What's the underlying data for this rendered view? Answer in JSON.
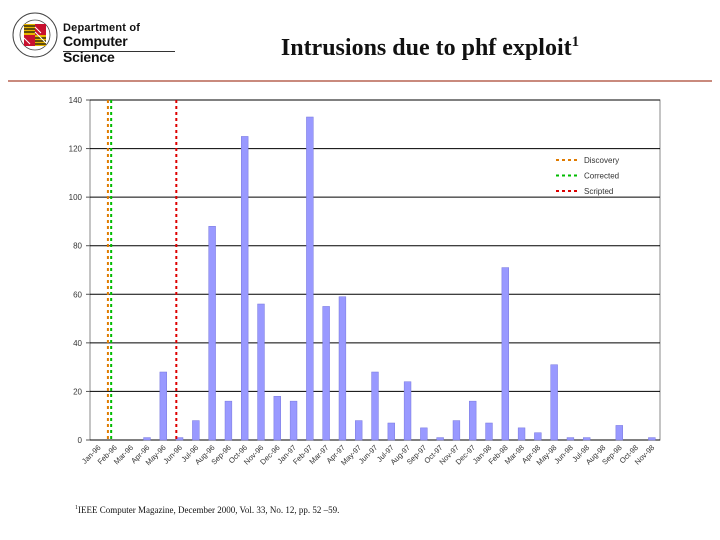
{
  "logo": {
    "line1": "Department of",
    "line2": "Computer Science",
    "seal_text": "MARYLAND"
  },
  "title": {
    "text": "Intrusions due to phf exploit",
    "footnote_marker": "1"
  },
  "footnote": {
    "marker": "1",
    "text": "IEEE Computer Magazine, December 2000, Vol. 33, No. 12, pp. 52 –59."
  },
  "chart_data": {
    "type": "bar",
    "categories": [
      "Jan-96",
      "Feb-96",
      "Mar-96",
      "Apr-96",
      "May-96",
      "Jun-96",
      "Jul-96",
      "Aug-96",
      "Sep-96",
      "Oct-96",
      "Nov-96",
      "Dec-96",
      "Jan-97",
      "Feb-97",
      "Mar-97",
      "Apr-97",
      "May-97",
      "Jun-97",
      "Jul-97",
      "Aug-97",
      "Sep-97",
      "Oct-97",
      "Nov-97",
      "Dec-97",
      "Jan-98",
      "Feb-98",
      "Mar-98",
      "Apr-98",
      "May-98",
      "Jun-98",
      "Jul-98",
      "Aug-98",
      "Sep-98",
      "Oct-98",
      "Nov-98"
    ],
    "values": [
      0,
      0,
      0,
      1,
      28,
      1,
      8,
      88,
      16,
      125,
      56,
      18,
      16,
      133,
      55,
      59,
      8,
      28,
      7,
      24,
      5,
      1,
      8,
      16,
      7,
      71,
      5,
      3,
      31,
      1,
      1,
      0,
      6,
      0,
      1
    ],
    "ylim": [
      0,
      140
    ],
    "yticks": [
      0,
      20,
      40,
      60,
      80,
      100,
      120,
      140
    ],
    "grid": true,
    "bar_color": "#9999ff",
    "legend_position": "top-right",
    "markers": [
      {
        "name": "Discovery",
        "category": "Jan-96",
        "offset": 0.6,
        "color": "#e07b00"
      },
      {
        "name": "Corrected",
        "category": "Feb-96",
        "offset": -0.2,
        "color": "#00bb00"
      },
      {
        "name": "Scripted",
        "category": "Jun-96",
        "offset": -0.2,
        "color": "#dd0000"
      }
    ]
  }
}
